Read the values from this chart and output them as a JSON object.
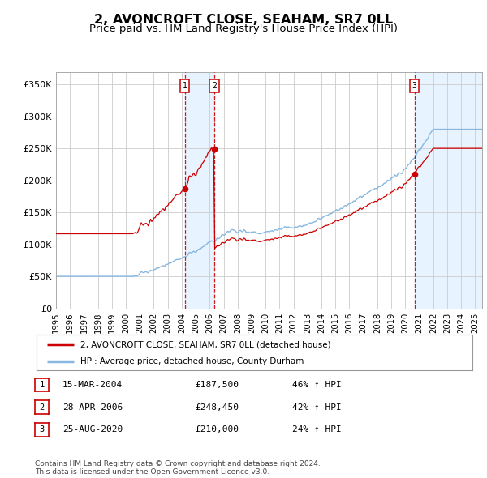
{
  "title": "2, AVONCROFT CLOSE, SEAHAM, SR7 0LL",
  "subtitle": "Price paid vs. HM Land Registry's House Price Index (HPI)",
  "title_fontsize": 11.5,
  "subtitle_fontsize": 9.5,
  "background_color": "#ffffff",
  "plot_bg_color": "#ffffff",
  "grid_color": "#cccccc",
  "hpi_color": "#88b8e0",
  "price_color": "#cc0000",
  "sale_marker_color": "#cc0000",
  "shade_color": "#ddeeff",
  "legend_label_price": "2, AVONCROFT CLOSE, SEAHAM, SR7 0LL (detached house)",
  "legend_label_hpi": "HPI: Average price, detached house, County Durham",
  "ylim": [
    0,
    370000
  ],
  "ytick_values": [
    0,
    50000,
    100000,
    150000,
    200000,
    250000,
    300000,
    350000
  ],
  "ytick_labels": [
    "£0",
    "£50K",
    "£100K",
    "£150K",
    "£200K",
    "£250K",
    "£300K",
    "£350K"
  ],
  "sales": [
    {
      "label": "1",
      "date": "15-MAR-2004",
      "price": 187500,
      "x": 2004.21,
      "hpi_pct": "46% ↑ HPI"
    },
    {
      "label": "2",
      "date": "28-APR-2006",
      "price": 248450,
      "x": 2006.33,
      "hpi_pct": "42% ↑ HPI"
    },
    {
      "label": "3",
      "date": "25-AUG-2020",
      "price": 210000,
      "x": 2020.65,
      "hpi_pct": "24% ↑ HPI"
    }
  ],
  "footnote": "Contains HM Land Registry data © Crown copyright and database right 2024.\nThis data is licensed under the Open Government Licence v3.0.",
  "xmin": 1995.0,
  "xmax": 2025.5
}
